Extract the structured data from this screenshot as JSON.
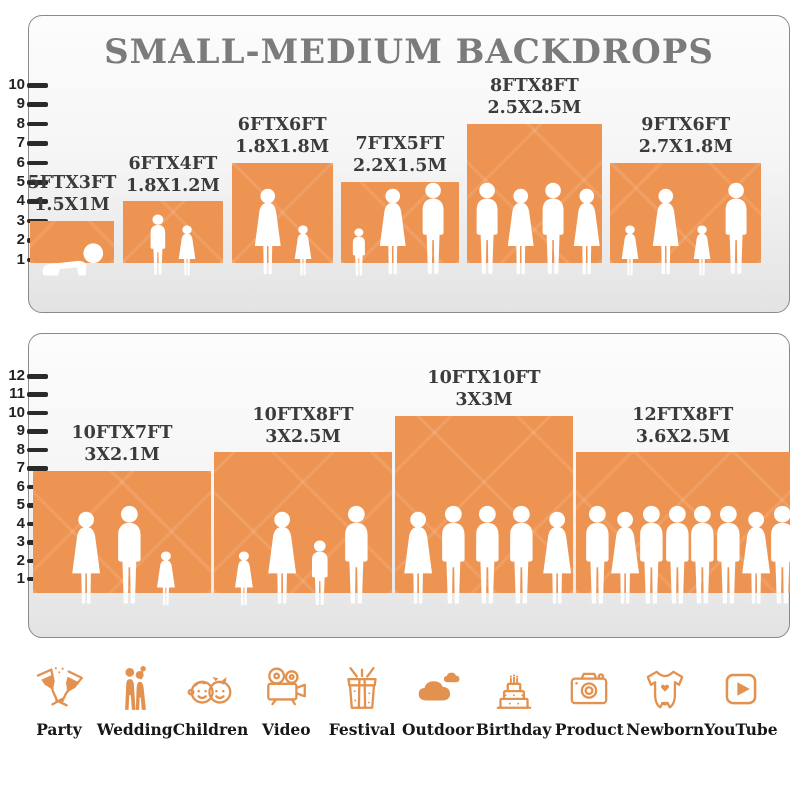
{
  "chart_data": [
    {
      "type": "bar",
      "title": "SMALL-MEDIUM BACKDROPS",
      "panel": "top",
      "unit_note": "sizes in feet (FT) and meters (M)",
      "yticks": [
        1,
        2,
        3,
        4,
        5,
        6,
        7,
        8,
        9,
        10
      ],
      "ylim": [
        0,
        10
      ],
      "bar_color": "#EE9452",
      "bars": [
        {
          "size_ft": "5FTX3FT",
          "size_m": "1.5X1M",
          "width_ft": 5,
          "height_ft": 3,
          "people": [
            "baby"
          ]
        },
        {
          "size_ft": "6FTX4FT",
          "size_m": "1.8X1.2M",
          "width_ft": 6,
          "height_ft": 4,
          "people": [
            "boy",
            "girl"
          ]
        },
        {
          "size_ft": "6FTX6FT",
          "size_m": "1.8X1.8M",
          "width_ft": 6,
          "height_ft": 6,
          "people": [
            "woman",
            "girl"
          ]
        },
        {
          "size_ft": "7FTX5FT",
          "size_m": "2.2X1.5M",
          "width_ft": 7,
          "height_ft": 5,
          "people": [
            "toddler",
            "woman",
            "man"
          ]
        },
        {
          "size_ft": "8FTX8FT",
          "size_m": "2.5X2.5M",
          "width_ft": 8,
          "height_ft": 8,
          "people": [
            "man",
            "woman",
            "man",
            "woman"
          ]
        },
        {
          "size_ft": "9FTX6FT",
          "size_m": "2.7X1.8M",
          "width_ft": 9,
          "height_ft": 6,
          "people": [
            "girl",
            "woman",
            "girl",
            "man"
          ]
        }
      ]
    },
    {
      "type": "bar",
      "panel": "bottom",
      "yticks": [
        1,
        2,
        3,
        4,
        5,
        6,
        7,
        8,
        9,
        10,
        11,
        12
      ],
      "ylim": [
        0,
        12
      ],
      "bar_color": "#EE9452",
      "bars": [
        {
          "size_ft": "10FTX7FT",
          "size_m": "3X2.1M",
          "width_ft": 10,
          "height_ft": 7,
          "people": [
            "woman",
            "man",
            "girl"
          ]
        },
        {
          "size_ft": "10FTX8FT",
          "size_m": "3X2.5M",
          "width_ft": 10,
          "height_ft": 8,
          "people": [
            "girl",
            "woman",
            "boy",
            "man"
          ]
        },
        {
          "size_ft": "10FTX10FT",
          "size_m": "3X3M",
          "width_ft": 10,
          "height_ft": 10,
          "people": [
            "woman",
            "man",
            "man",
            "man",
            "woman"
          ]
        },
        {
          "size_ft": "12FTX8FT",
          "size_m": "3.6X2.5M",
          "width_ft": 12,
          "height_ft": 8,
          "people": [
            "man",
            "woman",
            "man",
            "man",
            "man",
            "man",
            "woman",
            "man"
          ]
        }
      ]
    }
  ],
  "categories": [
    {
      "icon": "party-icon",
      "label": "Party"
    },
    {
      "icon": "wedding-icon",
      "label": "Wedding"
    },
    {
      "icon": "children-icon",
      "label": "Children"
    },
    {
      "icon": "video-icon",
      "label": "Video"
    },
    {
      "icon": "festival-icon",
      "label": "Festival"
    },
    {
      "icon": "outdoor-icon",
      "label": "Outdoor"
    },
    {
      "icon": "birthday-icon",
      "label": "Birthday"
    },
    {
      "icon": "product-icon",
      "label": "Product"
    },
    {
      "icon": "newborn-icon",
      "label": "Newborn"
    },
    {
      "icon": "youtube-icon",
      "label": "YouTube"
    }
  ],
  "colors": {
    "backdrop_orange": "#EE9452",
    "icon_orange": "#E2914E",
    "title_gray": "#7B7B7B",
    "label_dark": "#3B3B3B",
    "axis_dark": "#262626",
    "panel_border": "#8A8A8A"
  }
}
